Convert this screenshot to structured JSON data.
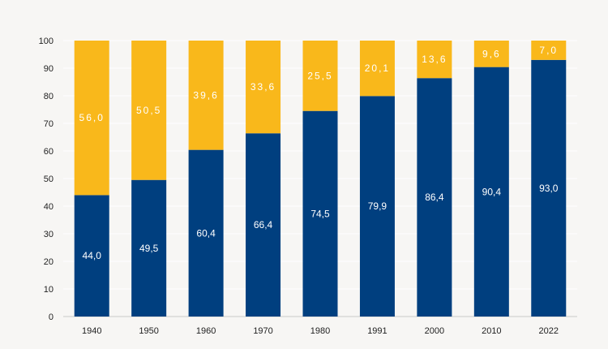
{
  "chart_data": {
    "type": "bar",
    "stacked": true,
    "categories": [
      "1940",
      "1950",
      "1960",
      "1970",
      "1980",
      "1991",
      "2000",
      "2010",
      "2022"
    ],
    "series": [
      {
        "values": [
          44.0,
          49.5,
          60.4,
          66.4,
          74.5,
          79.9,
          86.4,
          90.4,
          93.0
        ],
        "labels": [
          "44,0",
          "49,5",
          "60,4",
          "66,4",
          "74,5",
          "79,9",
          "86,4",
          "90,4",
          "93,0"
        ],
        "color": "#003f7f"
      },
      {
        "values": [
          56.0,
          50.5,
          39.6,
          33.6,
          25.5,
          20.1,
          13.6,
          9.6,
          7.0
        ],
        "labels": [
          "56,0",
          "50,5",
          "39,6",
          "33,6",
          "25,5",
          "20,1",
          "13,6",
          "9,6",
          "7,0"
        ],
        "color": "#f9b81b"
      }
    ],
    "ylim": [
      0,
      100
    ],
    "yticks": [
      "0",
      "10",
      "20",
      "30",
      "40",
      "50",
      "60",
      "70",
      "80",
      "90",
      "100"
    ],
    "grid": true,
    "legend": "none",
    "title": "",
    "xlabel": "",
    "ylabel": ""
  }
}
